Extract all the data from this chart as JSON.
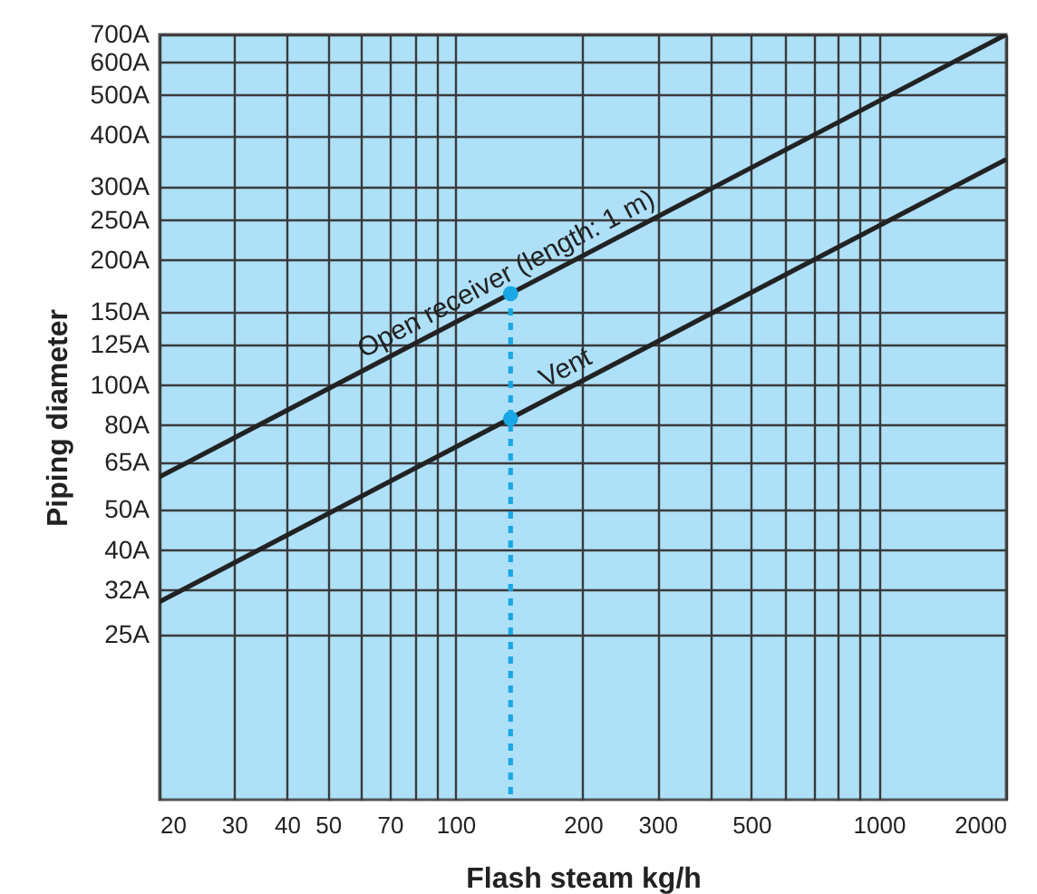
{
  "chart_data": {
    "type": "line",
    "xlabel": "Flash steam kg/h",
    "ylabel": "Piping diameter",
    "log": "xy",
    "grid": true,
    "xlim": [
      20,
      2000
    ],
    "ylim": [
      10,
      700
    ],
    "xticks": [
      20,
      30,
      40,
      50,
      {
        "value": 60,
        "label": null
      },
      70,
      {
        "value": 80,
        "label": null
      },
      {
        "value": 90,
        "label": null
      },
      100,
      200,
      300,
      {
        "value": 400,
        "label": null
      },
      500,
      {
        "value": 600,
        "label": null
      },
      {
        "value": 700,
        "label": null
      },
      {
        "value": 800,
        "label": null
      },
      {
        "value": 900,
        "label": null
      },
      1000,
      2000
    ],
    "yticks": [
      {
        "value": 25,
        "label": "25A"
      },
      {
        "value": 32,
        "label": "32A"
      },
      {
        "value": 40,
        "label": "40A"
      },
      {
        "value": 50,
        "label": "50A"
      },
      {
        "value": 65,
        "label": "65A"
      },
      {
        "value": 80,
        "label": "80A"
      },
      {
        "value": 100,
        "label": "100A"
      },
      {
        "value": 125,
        "label": "125A"
      },
      {
        "value": 150,
        "label": "150A"
      },
      {
        "value": 200,
        "label": "200A"
      },
      {
        "value": 250,
        "label": "250A"
      },
      {
        "value": 300,
        "label": "300A"
      },
      {
        "value": 400,
        "label": "400A"
      },
      {
        "value": 500,
        "label": "500A"
      },
      {
        "value": 600,
        "label": "600A"
      },
      {
        "value": 700,
        "label": "700A"
      }
    ],
    "series": [
      {
        "name": "Open receiver (length: 1 m)",
        "color": "#222222",
        "x": [
          20,
          2000
        ],
        "values": [
          60,
          700
        ],
        "line_style": "solid"
      },
      {
        "name": "Vent",
        "color": "#222222",
        "x": [
          20,
          2000
        ],
        "values": [
          30,
          350
        ],
        "line_style": "solid"
      },
      {
        "type": "line",
        "color": "#1aa7e6",
        "x": [
          135,
          135
        ],
        "values": [
          166,
          10
        ],
        "line_style": "dashed"
      },
      {
        "type": "scatter",
        "color": "#1aa7e6",
        "x": [
          135,
          135
        ],
        "values": [
          166,
          83
        ],
        "marker": "circle"
      }
    ]
  }
}
